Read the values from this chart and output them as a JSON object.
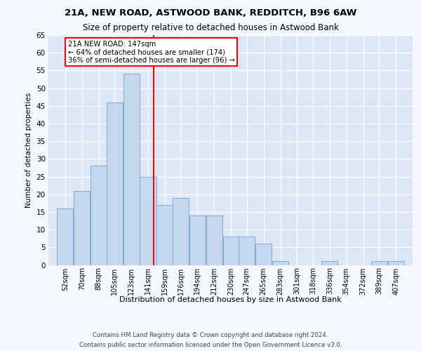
{
  "title1": "21A, NEW ROAD, ASTWOOD BANK, REDDITCH, B96 6AW",
  "title2": "Size of property relative to detached houses in Astwood Bank",
  "xlabel": "Distribution of detached houses by size in Astwood Bank",
  "ylabel": "Number of detached properties",
  "footer1": "Contains HM Land Registry data © Crown copyright and database right 2024.",
  "footer2": "Contains public sector information licensed under the Open Government Licence v3.0.",
  "annotation_line1": "21A NEW ROAD: 147sqm",
  "annotation_line2": "← 64% of detached houses are smaller (174)",
  "annotation_line3": "36% of semi-detached houses are larger (96) →",
  "bar_color": "#c5d8f0",
  "bar_edge_color": "#7aadd4",
  "red_line_x": 147,
  "categories": [
    "52sqm",
    "70sqm",
    "88sqm",
    "105sqm",
    "123sqm",
    "141sqm",
    "159sqm",
    "176sqm",
    "194sqm",
    "212sqm",
    "230sqm",
    "247sqm",
    "265sqm",
    "283sqm",
    "301sqm",
    "318sqm",
    "336sqm",
    "354sqm",
    "372sqm",
    "389sqm",
    "407sqm"
  ],
  "values": [
    16,
    21,
    28,
    46,
    54,
    25,
    17,
    19,
    14,
    14,
    8,
    8,
    6,
    1,
    0,
    0,
    1,
    0,
    0,
    1,
    1
  ],
  "bin_centers": [
    52,
    70,
    88,
    105,
    123,
    141,
    159,
    176,
    194,
    212,
    230,
    247,
    265,
    283,
    301,
    318,
    336,
    354,
    372,
    389,
    407
  ],
  "bin_width": 18,
  "ylim": [
    0,
    65
  ],
  "yticks": [
    0,
    5,
    10,
    15,
    20,
    25,
    30,
    35,
    40,
    45,
    50,
    55,
    60,
    65
  ],
  "bg_color": "#dce6f5",
  "plot_bg_color": "#dce6f5",
  "fig_bg_color": "#f5f8ff"
}
